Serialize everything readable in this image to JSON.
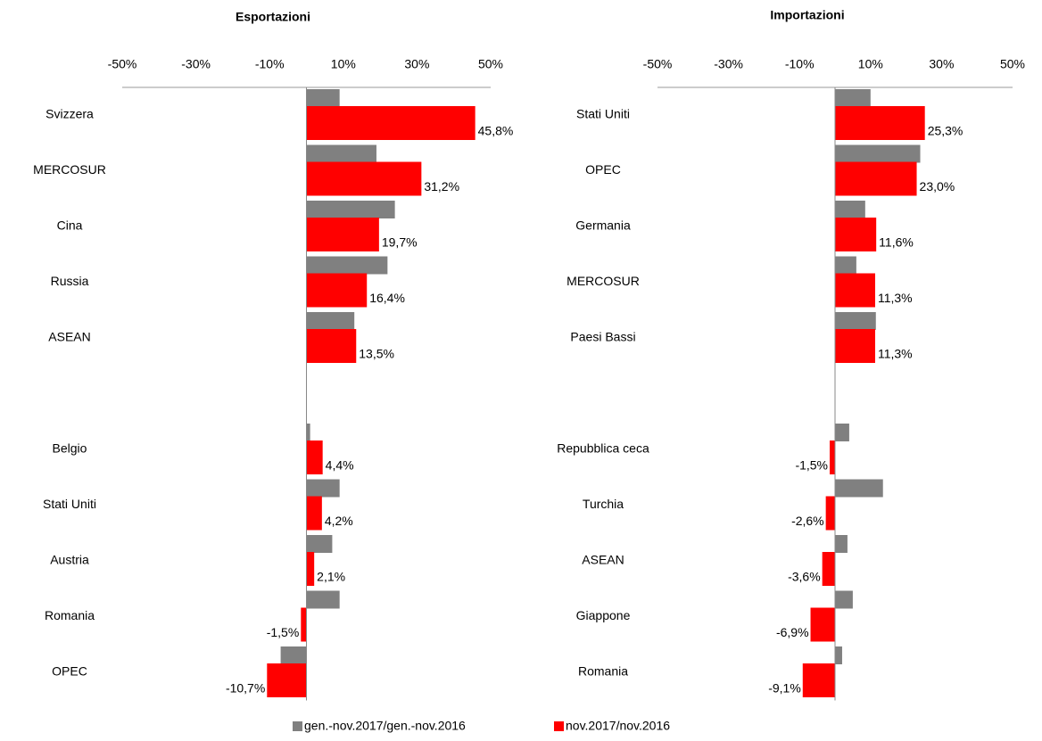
{
  "chart_data": [
    {
      "type": "bar",
      "orientation": "horizontal",
      "title": "Esportazioni",
      "categories": [
        "Svizzera",
        "MERCOSUR",
        "Cina",
        "Russia",
        "ASEAN",
        null,
        "Belgio",
        "Stati Uniti",
        "Austria",
        "Romania",
        "OPEC"
      ],
      "series": [
        {
          "name": "gen.-nov.2017/gen.-nov.2016",
          "color": "#808080",
          "values": [
            9,
            19,
            24,
            22,
            13,
            null,
            1,
            9,
            7,
            9,
            -7
          ]
        },
        {
          "name": "nov.2017/nov.2016",
          "color": "#ff0000",
          "values": [
            45.8,
            31.2,
            19.7,
            16.4,
            13.5,
            null,
            4.4,
            4.2,
            2.1,
            -1.5,
            -10.7
          ],
          "value_labels": [
            "45,8%",
            "31,2%",
            "19,7%",
            "16,4%",
            "13,5%",
            null,
            "4,4%",
            "4,2%",
            "2,1%",
            "-1,5%",
            "-10,7%"
          ]
        }
      ],
      "xlim": [
        -50,
        50
      ],
      "xticks": [
        {
          "value": -50,
          "label": "-50%"
        },
        {
          "value": -30,
          "label": "-30%"
        },
        {
          "value": -10,
          "label": "-10%"
        },
        {
          "value": 10,
          "label": "10%"
        },
        {
          "value": 30,
          "label": "30%"
        },
        {
          "value": 50,
          "label": "50%"
        }
      ],
      "grid": false
    },
    {
      "type": "bar",
      "orientation": "horizontal",
      "title": "Importazioni",
      "categories": [
        "Stati Uniti",
        "OPEC",
        "Germania",
        "MERCOSUR",
        "Paesi Bassi",
        null,
        "Repubblica ceca",
        "Turchia",
        "ASEAN",
        "Giappone",
        "Romania"
      ],
      "series": [
        {
          "color": "#808080",
          "values": [
            10,
            24,
            8.5,
            6,
            11.5,
            null,
            4,
            13.5,
            3.5,
            5,
            2
          ]
        },
        {
          "color": "#ff0000",
          "values": [
            25.3,
            23.0,
            11.6,
            11.3,
            11.3,
            null,
            -1.5,
            -2.6,
            -3.6,
            -6.9,
            -9.1
          ],
          "value_labels": [
            "25,3%",
            "23,0%",
            "11,6%",
            "11,3%",
            "11,3%",
            null,
            "-1,5%",
            "-2,6%",
            "-3,6%",
            "-6,9%",
            "-9,1%"
          ]
        }
      ],
      "xlim": [
        -50,
        50
      ],
      "xticks": [
        {
          "value": -50,
          "label": "-50%"
        },
        {
          "value": -30,
          "label": "-30%"
        },
        {
          "value": -10,
          "label": "-10%"
        },
        {
          "value": 10,
          "label": "10%"
        },
        {
          "value": 30,
          "label": "30%"
        },
        {
          "value": 50,
          "label": "50%"
        }
      ],
      "grid": false
    }
  ]
}
